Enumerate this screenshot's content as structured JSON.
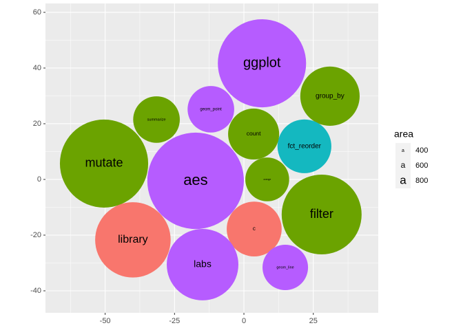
{
  "chart_data": {
    "type": "packed_circles",
    "xlim": [
      -71.5,
      48.4
    ],
    "ylim": [
      -47.9,
      63.2
    ],
    "xticks": [
      -50,
      -25,
      0,
      25
    ],
    "yticks": [
      -40,
      -20,
      0,
      20,
      40,
      60
    ],
    "grid": true,
    "circles": [
      {
        "label": "ggplot",
        "x": 6.5,
        "y": 41.7,
        "r": 15.9,
        "area": 920,
        "color": "#B65CFF"
      },
      {
        "label": "group_by",
        "x": 31,
        "y": 29.9,
        "r": 10.7,
        "area": 520,
        "color": "#6BA300"
      },
      {
        "label": "filter",
        "x": 28,
        "y": -12.6,
        "r": 14.4,
        "area": 840,
        "color": "#6BA300"
      },
      {
        "label": "fct_reorder",
        "x": 21.8,
        "y": 11.9,
        "r": 9.7,
        "area": 520,
        "color": "#14B8C0"
      },
      {
        "label": "count",
        "x": 3.5,
        "y": 16.3,
        "r": 9.2,
        "area": 460,
        "color": "#6BA300"
      },
      {
        "label": "orange",
        "x": 8.4,
        "y": 0,
        "r": 7.9,
        "area": 260,
        "color": "#6BA300"
      },
      {
        "label": "c",
        "x": 3.7,
        "y": -17.8,
        "r": 9.9,
        "area": 440,
        "color": "#F8766D"
      },
      {
        "label": "geom_line",
        "x": 14.9,
        "y": -31.6,
        "r": 8.2,
        "area": 340,
        "color": "#B65CFF"
      },
      {
        "label": "labs",
        "x": -14.9,
        "y": -30.6,
        "r": 12.9,
        "area": 680,
        "color": "#B65CFF"
      },
      {
        "label": "aes",
        "x": -17.4,
        "y": -0.5,
        "r": 17.4,
        "area": 1000,
        "color": "#B65CFF"
      },
      {
        "label": "geom_point",
        "x": -11.9,
        "y": 25.2,
        "r": 8.4,
        "area": 360,
        "color": "#B65CFF"
      },
      {
        "label": "summarize",
        "x": -31.5,
        "y": 21.5,
        "r": 8.4,
        "area": 340,
        "color": "#6BA300"
      },
      {
        "label": "mutate",
        "x": -50.4,
        "y": 5.7,
        "r": 15.9,
        "area": 840,
        "color": "#6BA300"
      },
      {
        "label": "library",
        "x": -40,
        "y": -21.7,
        "r": 13.6,
        "area": 760,
        "color": "#F8766D"
      }
    ],
    "legend": {
      "title": "area",
      "glyph": "a",
      "breaks": [
        400,
        600,
        800
      ]
    }
  }
}
